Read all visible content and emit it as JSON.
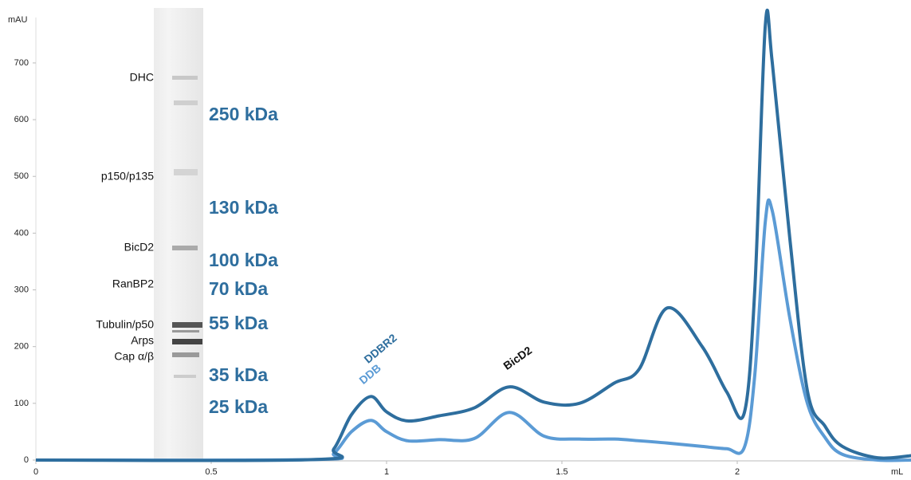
{
  "chart_data": {
    "type": "line",
    "y_label": "mAU",
    "x_label": "mL",
    "x": [
      0,
      0.8,
      0.85,
      0.9,
      0.955,
      1.0,
      1.06,
      1.15,
      1.25,
      1.35,
      1.45,
      1.55,
      1.65,
      1.72,
      1.8,
      1.9,
      1.97,
      2.02,
      2.05,
      2.08,
      2.1,
      2.15,
      2.2,
      2.25,
      2.3,
      2.4,
      2.5
    ],
    "series": [
      {
        "name": "DDBR2",
        "color": "#2e6e9e",
        "values": [
          0,
          1,
          20,
          80,
          112,
          85,
          69,
          78,
          92,
          129,
          102,
          100,
          136,
          160,
          268,
          200,
          120,
          83,
          300,
          766,
          700,
          390,
          122,
          60,
          24,
          4,
          8
        ]
      },
      {
        "name": "DDB",
        "color": "#5b9bd5",
        "values": [
          0,
          1,
          12,
          50,
          70,
          50,
          34,
          36,
          38,
          84,
          42,
          37,
          37,
          34,
          30,
          24,
          20,
          22,
          150,
          420,
          439,
          250,
          100,
          40,
          10,
          0,
          0
        ]
      }
    ],
    "annotations": [
      "BicD2"
    ],
    "xlim": [
      0,
      2.5
    ],
    "xticks": [
      0,
      0.5,
      1,
      1.5,
      2
    ],
    "ylim": [
      0,
      780
    ],
    "yticks": [
      0,
      100,
      200,
      300,
      400,
      500,
      600,
      700
    ],
    "grid": false
  },
  "gel": {
    "bands": [
      "DHC",
      "p150/p135",
      "BicD2",
      "RanBP2",
      "Tubulin/p50",
      "Arps",
      "Cap α/β"
    ],
    "markers": [
      "250 kDa",
      "130 kDa",
      "100 kDa",
      "70 kDa",
      "55 kDa",
      "35 kDa",
      "25 kDa"
    ]
  }
}
